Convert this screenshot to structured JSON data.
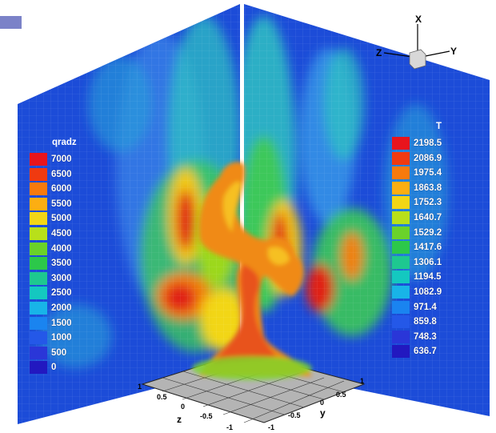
{
  "legends": {
    "left": {
      "title": "qradz",
      "values": [
        "7000",
        "6500",
        "6000",
        "5500",
        "5000",
        "4500",
        "4000",
        "3500",
        "3000",
        "2500",
        "2000",
        "1500",
        "1000",
        "500",
        "0"
      ],
      "colors": [
        "#e8141c",
        "#f03a10",
        "#f87a0c",
        "#fcae12",
        "#f2d616",
        "#b8e01a",
        "#6ad22a",
        "#2cc84a",
        "#1ec890",
        "#14c8c0",
        "#18b4e8",
        "#1a84f0",
        "#2458e8",
        "#2a36d8",
        "#2218c0"
      ]
    },
    "right": {
      "title": "T",
      "values": [
        "2198.5",
        "2086.9",
        "1975.4",
        "1863.8",
        "1752.3",
        "1640.7",
        "1529.2",
        "1417.6",
        "1306.1",
        "1194.5",
        "1082.9",
        "971.4",
        "859.8",
        "748.3",
        "636.7"
      ],
      "colors": [
        "#e8141c",
        "#f03a10",
        "#f87a0c",
        "#fcae12",
        "#f2d616",
        "#b8e01a",
        "#6ad22a",
        "#2cc84a",
        "#1ec890",
        "#14c8c0",
        "#18b4e8",
        "#1a84f0",
        "#2458e8",
        "#2a36d8",
        "#2218c0"
      ]
    }
  },
  "orientation_triad": {
    "x": "X",
    "y": "Y",
    "z": "Z"
  },
  "axes": {
    "z_label": "z",
    "y_label": "y",
    "z_ticks": [
      "1",
      "0.5",
      "0",
      "-0.5",
      "-1"
    ],
    "y_ticks": [
      "1",
      "0.5",
      "0",
      "-0.5",
      "-1"
    ]
  },
  "colors": {
    "accent": "#7b82c8",
    "wall_base": "#1c4cd8",
    "floor": "#b4b4b4"
  }
}
